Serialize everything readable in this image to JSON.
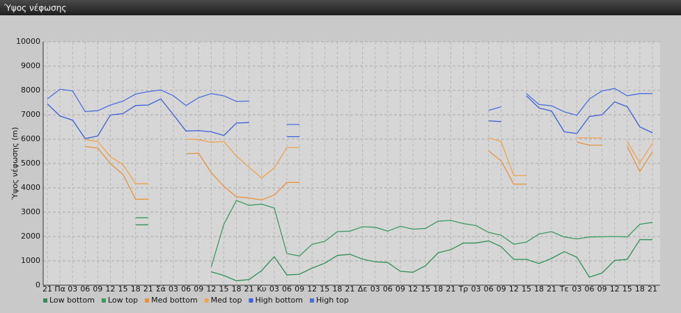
{
  "chart_data": {
    "type": "line",
    "title": "Ύψος νέφωσης",
    "y_label": "Ύψος νέφωσης (m)",
    "categories": [
      "21",
      "Πα",
      "03",
      "06",
      "09",
      "12",
      "15",
      "18",
      "21",
      "Σά",
      "03",
      "06",
      "09",
      "12",
      "15",
      "18",
      "21",
      "Κυ",
      "03",
      "06",
      "09",
      "12",
      "15",
      "18",
      "21",
      "Δε",
      "03",
      "06",
      "09",
      "12",
      "15",
      "18",
      "21",
      "Τρ",
      "03",
      "06",
      "09",
      "12",
      "15",
      "18",
      "21",
      "Τε",
      "03",
      "06",
      "09",
      "12",
      "15",
      "18",
      "21"
    ],
    "ylim": [
      0,
      10000
    ],
    "yticks": [
      0,
      1000,
      2000,
      3000,
      4000,
      5000,
      6000,
      7000,
      8000,
      9000,
      10000
    ],
    "grid": true,
    "legend": "bottom",
    "series": [
      {
        "name": "Low bottom",
        "color": "#2f8f55",
        "values": [
          null,
          null,
          null,
          null,
          null,
          null,
          null,
          2480,
          2480,
          null,
          null,
          null,
          null,
          550,
          400,
          180,
          230,
          600,
          1170,
          420,
          450,
          700,
          900,
          1220,
          1270,
          1070,
          960,
          930,
          570,
          530,
          800,
          1330,
          1460,
          1730,
          1730,
          1820,
          1580,
          1060,
          1060,
          890,
          1100,
          1380,
          1150,
          330,
          500,
          1020,
          1060,
          1870,
          1870
        ]
      },
      {
        "name": "Low top",
        "color": "#3a9a60",
        "values": [
          null,
          null,
          null,
          null,
          null,
          null,
          null,
          2770,
          2770,
          null,
          null,
          null,
          null,
          750,
          2500,
          3480,
          3280,
          3330,
          3170,
          1300,
          1200,
          1680,
          1800,
          2200,
          2220,
          2400,
          2380,
          2220,
          2420,
          2300,
          2330,
          2630,
          2660,
          2530,
          2450,
          2170,
          2050,
          1680,
          1770,
          2100,
          2200,
          1980,
          1900,
          1980,
          1990,
          2000,
          1980,
          2500,
          2580
        ]
      },
      {
        "name": "Med bottom",
        "color": "#e8923a",
        "values": [
          null,
          null,
          null,
          5700,
          5630,
          5000,
          4550,
          3530,
          3530,
          null,
          null,
          5400,
          5420,
          4620,
          4060,
          3630,
          3580,
          3500,
          3700,
          4220,
          4220,
          null,
          null,
          null,
          null,
          null,
          null,
          null,
          null,
          null,
          null,
          null,
          null,
          null,
          null,
          5520,
          5100,
          4150,
          4150,
          null,
          null,
          null,
          5880,
          5750,
          5750,
          null,
          5700,
          4670,
          5480
        ]
      },
      {
        "name": "Med top",
        "color": "#f0a24c",
        "values": [
          null,
          null,
          null,
          5980,
          5900,
          5280,
          4950,
          4170,
          4170,
          null,
          null,
          6000,
          5980,
          5870,
          5900,
          5300,
          4850,
          4400,
          4820,
          5650,
          5660,
          null,
          null,
          null,
          null,
          null,
          null,
          null,
          null,
          null,
          null,
          null,
          null,
          null,
          null,
          6050,
          5900,
          4500,
          4500,
          null,
          null,
          null,
          6050,
          6050,
          6050,
          null,
          5900,
          5020,
          5830
        ]
      },
      {
        "name": "High bottom",
        "color": "#3a5fd8",
        "values": [
          7450,
          6950,
          6780,
          6020,
          6130,
          6990,
          7050,
          7380,
          7400,
          7650,
          7000,
          6330,
          6350,
          6300,
          6150,
          6660,
          6680,
          null,
          null,
          6100,
          6100,
          null,
          null,
          null,
          null,
          null,
          null,
          null,
          null,
          null,
          null,
          null,
          null,
          null,
          null,
          6750,
          6720,
          null,
          7780,
          7280,
          7150,
          6300,
          6230,
          6930,
          7000,
          7530,
          7330,
          6500,
          6260
        ]
      },
      {
        "name": "High top",
        "color": "#4a6fe0",
        "values": [
          7650,
          8050,
          7980,
          7130,
          7170,
          7400,
          7560,
          7850,
          7950,
          8020,
          7780,
          7380,
          7700,
          7870,
          7780,
          7550,
          7560,
          null,
          null,
          6600,
          6600,
          null,
          null,
          null,
          null,
          null,
          null,
          null,
          null,
          null,
          null,
          null,
          null,
          null,
          null,
          7180,
          7330,
          null,
          7870,
          7420,
          7370,
          7120,
          6980,
          7650,
          7980,
          8080,
          7780,
          7870,
          7870
        ]
      }
    ]
  }
}
